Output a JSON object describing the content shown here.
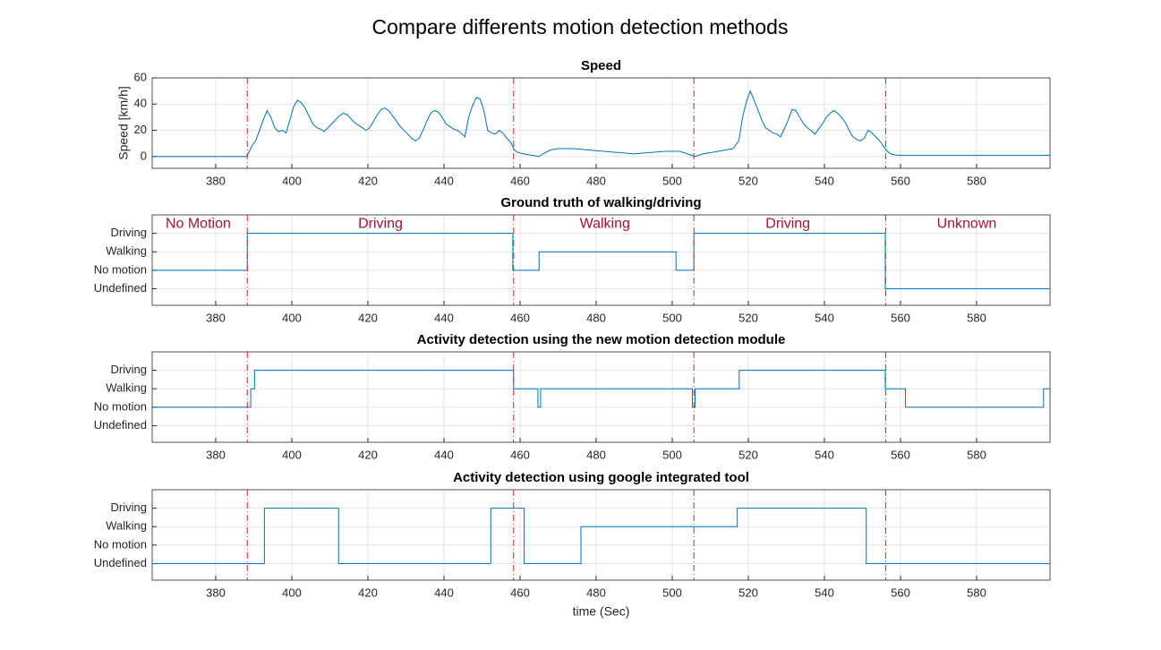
{
  "title": "Compare differents motion detection methods",
  "chart_data": [
    {
      "type": "line",
      "title": "Speed",
      "ylabel": "Speed [km/h]",
      "color": "#0072bd",
      "grid": true,
      "xlim": [
        363.3,
        599.3
      ],
      "xticks": [
        380,
        400,
        420,
        440,
        460,
        480,
        500,
        520,
        540,
        560,
        580
      ],
      "ylim": [
        -9,
        60
      ],
      "yticks": [
        0,
        20,
        40,
        60
      ],
      "vlines": [
        388.3,
        458.3,
        505.7,
        556.1
      ],
      "vline_color": "#e02020",
      "x": [
        363.3,
        388,
        388.5,
        389.5,
        390.5,
        391.5,
        392.5,
        393.5,
        394.5,
        395.5,
        396.5,
        397.5,
        398.5,
        399.5,
        400.5,
        401.5,
        402.5,
        403.5,
        404.5,
        405.5,
        406.5,
        407.5,
        408.5,
        409.5,
        410.5,
        411.5,
        412.5,
        413.5,
        414.5,
        415.5,
        416.5,
        417.5,
        418.5,
        419.5,
        420.5,
        421.5,
        422.5,
        423.5,
        424.5,
        425.5,
        426.5,
        427.5,
        428.5,
        429.5,
        430.5,
        431.5,
        432.5,
        433.5,
        434.5,
        435.5,
        436.5,
        437.5,
        438.5,
        439.5,
        440.5,
        441.5,
        442.5,
        443.5,
        444.5,
        445.5,
        446.5,
        447.5,
        448.5,
        449.5,
        450.5,
        451.5,
        452.5,
        453.5,
        454.5,
        455.5,
        456.5,
        457.5,
        458.5,
        459.5,
        461,
        463,
        465,
        466,
        468,
        470,
        474,
        478,
        482,
        486,
        490,
        494,
        498,
        502,
        505,
        506,
        508,
        512,
        516,
        517.5,
        518.5,
        519.5,
        520.5,
        522.5,
        523.5,
        524.5,
        525.5,
        526.5,
        527.5,
        528.5,
        530.5,
        531.5,
        532.5,
        533.5,
        534.5,
        535.5,
        536.5,
        537.5,
        539.5,
        540.5,
        541.5,
        542.5,
        543.5,
        544.5,
        545.5,
        546.5,
        547.5,
        548.5,
        549.5,
        550.5,
        551.5,
        552.5,
        553.5,
        554.5,
        555.5,
        556.5,
        557.5,
        559,
        599.3
      ],
      "values": [
        0,
        0,
        2,
        8,
        12,
        20,
        28,
        35,
        30,
        22,
        19,
        20,
        18,
        28,
        38,
        43,
        41,
        37,
        31,
        25,
        22,
        21,
        19,
        22,
        25,
        28,
        31,
        33,
        32,
        29,
        26,
        24,
        22,
        20,
        22,
        27,
        32,
        36,
        37,
        35,
        31,
        27,
        23,
        20,
        17,
        14,
        12,
        14,
        20,
        27,
        33,
        35,
        34,
        30,
        25,
        23,
        21,
        20,
        18,
        15,
        30,
        39,
        45,
        44,
        35,
        20,
        18,
        17,
        20,
        18,
        14,
        11,
        5,
        3,
        2,
        1,
        0,
        2,
        5,
        6,
        6,
        5,
        4,
        3,
        2,
        3,
        4,
        4,
        1,
        0,
        2,
        4,
        6,
        12,
        30,
        42,
        50,
        36,
        28,
        22,
        20,
        18,
        17,
        15,
        28,
        36,
        35,
        30,
        25,
        22,
        20,
        17,
        25,
        30,
        33,
        35,
        33,
        30,
        26,
        20,
        15,
        13,
        12,
        14,
        20,
        18,
        15,
        12,
        8,
        4,
        2,
        1,
        1
      ]
    },
    {
      "type": "line",
      "title": "Ground truth of walking/driving",
      "color": "#0072bd",
      "grid": true,
      "xlim": [
        363.3,
        599.3
      ],
      "xticks": [
        380,
        400,
        420,
        440,
        460,
        480,
        500,
        520,
        540,
        560,
        580
      ],
      "ylim": [
        -0.9,
        4
      ],
      "yticks": [
        {
          "value": 0,
          "label": "Undefined"
        },
        {
          "value": 1,
          "label": "No motion"
        },
        {
          "value": 2,
          "label": "Walking"
        },
        {
          "value": 3,
          "label": "Driving"
        }
      ],
      "vlines": [
        388.3,
        458.3,
        505.7,
        556.1
      ],
      "vline_color": "#e02020",
      "annotations": [
        {
          "text": "No Motion",
          "x": 375.4,
          "y": 3.5
        },
        {
          "text": "Driving",
          "x": 423.3,
          "y": 3.5
        },
        {
          "text": "Walking",
          "x": 482.3,
          "y": 3.5
        },
        {
          "text": "Driving",
          "x": 530.4,
          "y": 3.5
        },
        {
          "text": "Unknown",
          "x": 577.4,
          "y": 3.5
        }
      ],
      "annotation_color": "#a2142f",
      "x": [
        363.3,
        388.3,
        388.3,
        458.1,
        458.1,
        465,
        465,
        501,
        501,
        505.7,
        505.7,
        556,
        556,
        599.3
      ],
      "values": [
        1,
        1,
        3,
        3,
        1,
        1,
        2,
        2,
        1,
        1,
        3,
        3,
        0,
        0
      ]
    },
    {
      "type": "line",
      "title": "Activity detection using the new motion detection module",
      "color": "#0072bd",
      "grid": true,
      "xlim": [
        363.3,
        599.3
      ],
      "xticks": [
        380,
        400,
        420,
        440,
        460,
        480,
        500,
        520,
        540,
        560,
        580
      ],
      "ylim": [
        -0.9,
        4
      ],
      "yticks": [
        {
          "value": 0,
          "label": "Undefined"
        },
        {
          "value": 1,
          "label": "No motion"
        },
        {
          "value": 2,
          "label": "Walking"
        },
        {
          "value": 3,
          "label": "Driving"
        }
      ],
      "vlines": [
        388.3,
        458.3,
        505.7,
        556.1
      ],
      "vline_color": "#e02020",
      "x": [
        363.3,
        389.2,
        389.2,
        390.2,
        390.2,
        458.3,
        458.3,
        464.7,
        464.7,
        465.4,
        465.4,
        505.3,
        505.3,
        506,
        506,
        517.6,
        517.6,
        556,
        556,
        561.3,
        561.3,
        597.6,
        597.6,
        599.3
      ],
      "values": [
        1,
        1,
        2,
        2,
        3,
        3,
        2,
        2,
        1,
        1,
        2,
        2,
        1,
        1,
        2,
        2,
        3,
        3,
        2,
        2,
        1,
        1,
        2,
        2
      ]
    },
    {
      "type": "line",
      "title": "Activity detection using google integrated tool",
      "xlabel": "time (Sec)",
      "color": "#0072bd",
      "grid": true,
      "xlim": [
        363.3,
        599.3
      ],
      "xticks": [
        380,
        400,
        420,
        440,
        460,
        480,
        500,
        520,
        540,
        560,
        580
      ],
      "ylim": [
        -0.9,
        4
      ],
      "yticks": [
        {
          "value": 0,
          "label": "Undefined"
        },
        {
          "value": 1,
          "label": "No motion"
        },
        {
          "value": 2,
          "label": "Walking"
        },
        {
          "value": 3,
          "label": "Driving"
        }
      ],
      "vlines": [
        388.3,
        458.3,
        505.7,
        556.1
      ],
      "vline_color": "#e02020",
      "x": [
        363.3,
        392.8,
        392.8,
        412.3,
        412.3,
        452.3,
        452.3,
        461.1,
        461.1,
        476,
        476,
        517.1,
        517.1,
        551,
        551,
        599.3
      ],
      "values": [
        0,
        0,
        3,
        3,
        0,
        0,
        3,
        3,
        0,
        0,
        2,
        2,
        3,
        3,
        0,
        0
      ]
    }
  ]
}
